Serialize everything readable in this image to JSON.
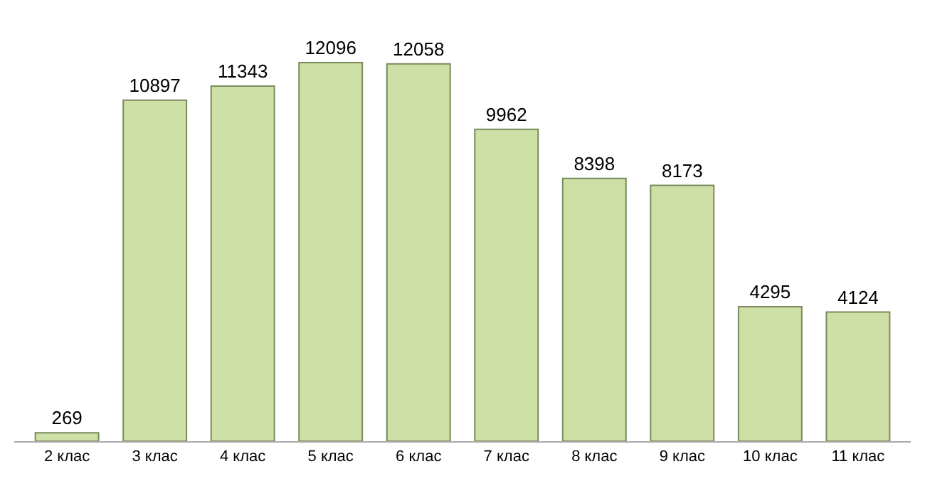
{
  "chart_data": {
    "type": "bar",
    "categories": [
      "2 клас",
      "3 клас",
      "4 клас",
      "5 клас",
      "6 клас",
      "7 клас",
      "8 клас",
      "9 клас",
      "10 клас",
      "11 клас"
    ],
    "values": [
      269,
      10897,
      11343,
      12096,
      12058,
      9962,
      8398,
      8173,
      4295,
      4124
    ],
    "color": "#cfe0a6",
    "data_labels": true
  }
}
